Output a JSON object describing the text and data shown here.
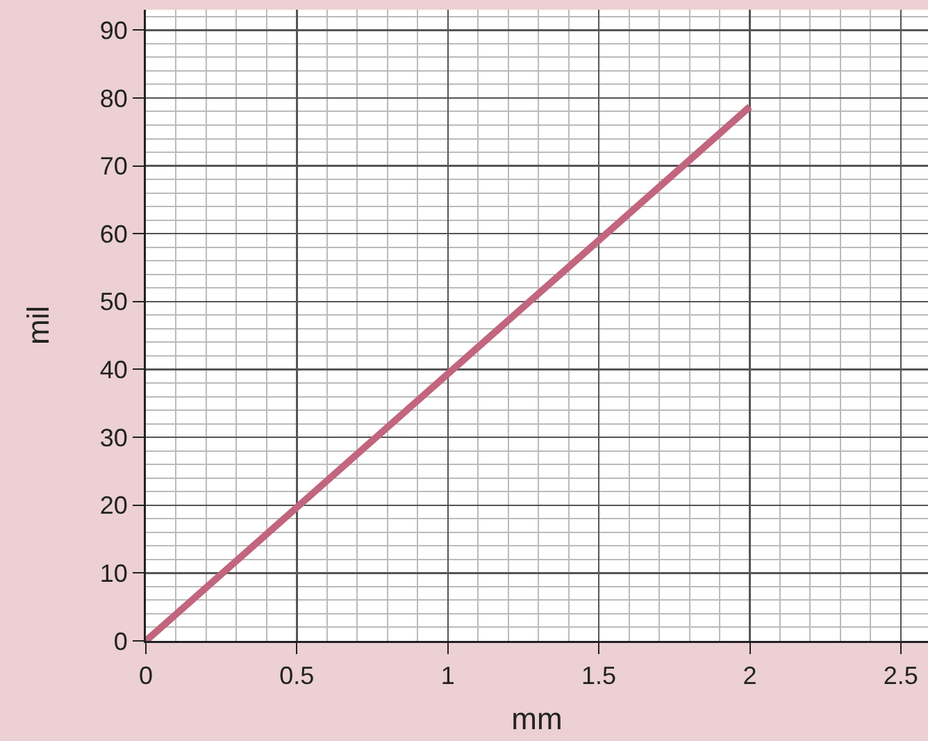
{
  "chart_data": {
    "type": "line",
    "xlabel": "mm",
    "ylabel": "mil",
    "x": [
      0,
      2
    ],
    "series": [
      {
        "color": "#c2657f",
        "values": [
          0,
          78.7
        ]
      }
    ],
    "xlim": [
      0,
      2.59
    ],
    "xticks": [
      0,
      0.5,
      1,
      1.5,
      2,
      2.5
    ],
    "ylim": [
      0,
      93
    ],
    "yticks": [
      0,
      10,
      20,
      30,
      40,
      50,
      60,
      70,
      80,
      90
    ],
    "grid": true,
    "marker": "none",
    "line_style": "solid"
  }
}
